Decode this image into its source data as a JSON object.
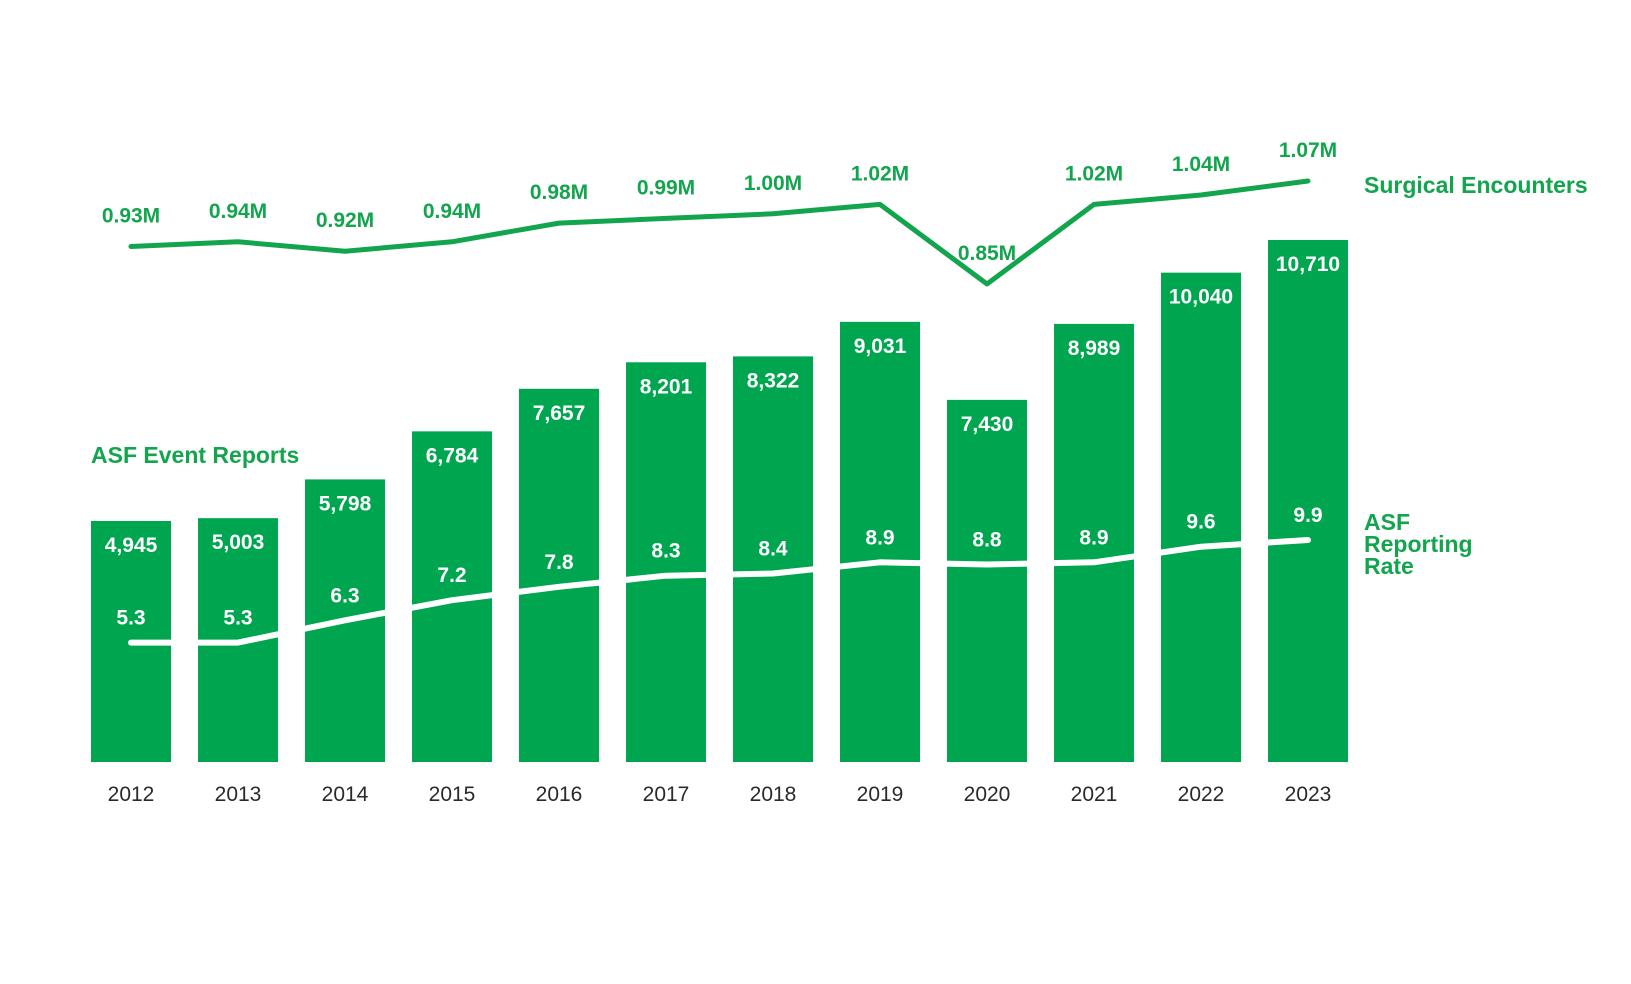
{
  "chart_data": {
    "type": "bar",
    "categories": [
      "2012",
      "2013",
      "2014",
      "2015",
      "2016",
      "2017",
      "2018",
      "2019",
      "2020",
      "2021",
      "2022",
      "2023"
    ],
    "series": [
      {
        "name": "ASF Event Reports",
        "kind": "bar",
        "values": [
          4945,
          5003,
          5798,
          6784,
          7657,
          8201,
          8322,
          9031,
          7430,
          8989,
          10040,
          10710
        ],
        "labels": [
          "4,945",
          "5,003",
          "5,798",
          "6,784",
          "7,657",
          "8,201",
          "8,322",
          "9,031",
          "7,430",
          "8,989",
          "10,040",
          "10,710"
        ]
      },
      {
        "name": "Surgical Encounters",
        "kind": "line",
        "values": [
          0.93,
          0.94,
          0.92,
          0.94,
          0.98,
          0.99,
          1.0,
          1.02,
          0.85,
          1.02,
          1.04,
          1.07
        ],
        "labels": [
          "0.93M",
          "0.94M",
          "0.92M",
          "0.94M",
          "0.98M",
          "0.99M",
          "1.00M",
          "1.02M",
          "0.85M",
          "1.02M",
          "1.04M",
          "1.07M"
        ]
      },
      {
        "name": "ASF Reporting Rate",
        "name_lines": [
          "ASF",
          "Reporting",
          "Rate"
        ],
        "kind": "line",
        "values": [
          5.3,
          5.3,
          6.3,
          7.2,
          7.8,
          8.3,
          8.4,
          8.9,
          8.8,
          8.9,
          9.6,
          9.9
        ],
        "labels": [
          "5.3",
          "5.3",
          "6.3",
          "7.2",
          "7.8",
          "8.3",
          "8.4",
          "8.9",
          "8.8",
          "8.9",
          "9.6",
          "9.9"
        ]
      }
    ],
    "colors": {
      "bar": "#00a550",
      "line": "#13a54d",
      "rate_line": "#ffffff",
      "year_text": "#2a2a2a"
    },
    "grid": false,
    "axes": "hidden"
  }
}
